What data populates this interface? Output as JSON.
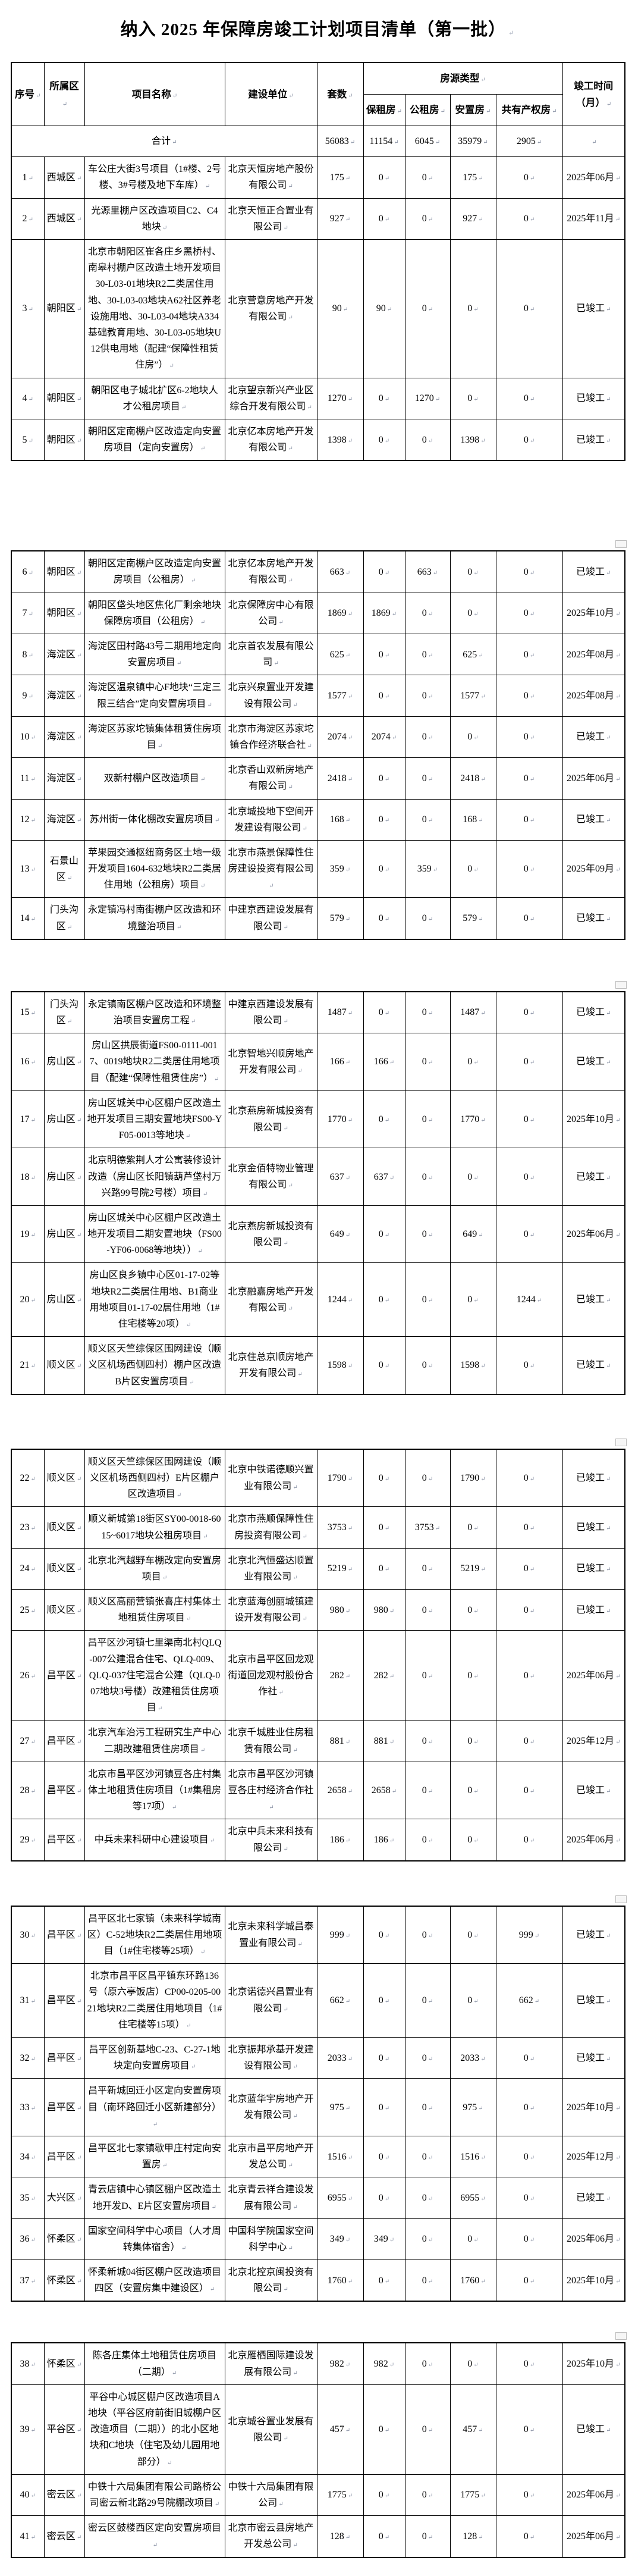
{
  "title": "纳入 2025 年保障房竣工计划项目清单（第一批）",
  "colors": {
    "background": "#ffffff",
    "text": "#000000",
    "table_border": "#000000",
    "paragraph_mark": "#8e96a8"
  },
  "table": {
    "headers": {
      "seq": "序号",
      "district": "所属区",
      "project": "项目名称",
      "builder": "建设单位",
      "units": "套数",
      "type_group": "房源类型",
      "bzf": "保租房",
      "gzf": "公租房",
      "azf": "安置房",
      "gycqf": "共有产权房",
      "completion": "竣工时间\n（月）"
    },
    "total": {
      "label": "合计",
      "units": "56083",
      "bzf": "11154",
      "gzf": "6045",
      "azf": "35979",
      "gycqf": "2905",
      "completion": ""
    },
    "sections": [
      {
        "rows": [
          {
            "seq": "1",
            "district": "西城区",
            "project": "车公庄大街3号项目（1#楼、2号楼、3#号楼及地下车库）",
            "builder": "北京天恒房地产股份有限公司",
            "units": "175",
            "bzf": "0",
            "gzf": "0",
            "azf": "175",
            "gycqf": "0",
            "completion": "2025年06月"
          },
          {
            "seq": "2",
            "district": "西城区",
            "project": "光源里棚户区改造项目C2、C4地块",
            "builder": "北京天恒正合置业有限公司",
            "units": "927",
            "bzf": "0",
            "gzf": "0",
            "azf": "927",
            "gycqf": "0",
            "completion": "2025年11月"
          },
          {
            "seq": "3",
            "district": "朝阳区",
            "project": "北京市朝阳区崔各庄乡黑桥村、南皋村棚户区改造土地开发项目30-L03-01地块R2二类居住用地、30-L03-03地块A62社区养老设施用地、30-L03-04地块A334基础教育用地、30-L03-05地块U12供电用地（配建“保障性租赁住房”）",
            "builder": "北京营意房地产开发有限公司",
            "units": "90",
            "bzf": "90",
            "gzf": "0",
            "azf": "0",
            "gycqf": "0",
            "completion": "已竣工"
          },
          {
            "seq": "4",
            "district": "朝阳区",
            "project": "朝阳区电子城北扩区6-2地块人才公租房项目",
            "builder": "北京望京新兴产业区综合开发有限公司",
            "units": "1270",
            "bzf": "0",
            "gzf": "1270",
            "azf": "0",
            "gycqf": "0",
            "completion": "已竣工"
          },
          {
            "seq": "5",
            "district": "朝阳区",
            "project": "朝阳区定南棚户区改造定向安置房项目（定向安置房）",
            "builder": "北京亿本房地产开发有限公司",
            "units": "1398",
            "bzf": "0",
            "gzf": "0",
            "azf": "1398",
            "gycqf": "0",
            "completion": "已竣工"
          }
        ]
      },
      {
        "rows": [
          {
            "seq": "6",
            "district": "朝阳区",
            "project": "朝阳区定南棚户区改造定向安置房项目（公租房）",
            "builder": "北京亿本房地产开发有限公司",
            "units": "663",
            "bzf": "0",
            "gzf": "663",
            "azf": "0",
            "gycqf": "0",
            "completion": "已竣工"
          },
          {
            "seq": "7",
            "district": "朝阳区",
            "project": "朝阳区垡头地区焦化厂剩余地块保障房项目（公租房）",
            "builder": "北京保障房中心有限公司",
            "units": "1869",
            "bzf": "1869",
            "gzf": "0",
            "azf": "0",
            "gycqf": "0",
            "completion": "2025年10月"
          },
          {
            "seq": "8",
            "district": "海淀区",
            "project": "海淀区田村路43号二期用地定向安置房项目",
            "builder": "北京首农发展有限公司",
            "units": "625",
            "bzf": "0",
            "gzf": "0",
            "azf": "625",
            "gycqf": "0",
            "completion": "2025年08月"
          },
          {
            "seq": "9",
            "district": "海淀区",
            "project": "海淀区温泉镇中心F地块“三定三限三结合”定向安置房项目",
            "builder": "北京兴泉置业开发建设有限公司",
            "units": "1577",
            "bzf": "0",
            "gzf": "0",
            "azf": "1577",
            "gycqf": "0",
            "completion": "2025年08月"
          },
          {
            "seq": "10",
            "district": "海淀区",
            "project": "海淀区苏家坨镇集体租赁住房项目",
            "builder": "北京市海淀区苏家坨镇合作经济联合社",
            "units": "2074",
            "bzf": "2074",
            "gzf": "0",
            "azf": "0",
            "gycqf": "0",
            "completion": "已竣工"
          },
          {
            "seq": "11",
            "district": "海淀区",
            "project": "双新村棚户区改造项目",
            "builder": "北京香山双新房地产有限公司",
            "units": "2418",
            "bzf": "0",
            "gzf": "0",
            "azf": "2418",
            "gycqf": "0",
            "completion": "2025年06月"
          },
          {
            "seq": "12",
            "district": "海淀区",
            "project": "苏州街一体化棚改安置房项目",
            "builder": "北京城投地下空间开发建设有限公司",
            "units": "168",
            "bzf": "0",
            "gzf": "0",
            "azf": "168",
            "gycqf": "0",
            "completion": "已竣工"
          },
          {
            "seq": "13",
            "district": "石景山区",
            "project": "苹果园交通枢纽商务区土地一级开发项目1604-632地块R2二类居住用地（公租房）项目",
            "builder": "北京市燕景保障性住房建设投资有限公司",
            "units": "359",
            "bzf": "0",
            "gzf": "359",
            "azf": "0",
            "gycqf": "0",
            "completion": "2025年09月"
          },
          {
            "seq": "14",
            "district": "门头沟区",
            "project": "永定镇冯村南街棚户区改造和环境整治项目",
            "builder": "中建京西建设发展有限公司",
            "units": "579",
            "bzf": "0",
            "gzf": "0",
            "azf": "579",
            "gycqf": "0",
            "completion": "已竣工"
          }
        ]
      },
      {
        "rows": [
          {
            "seq": "15",
            "district": "门头沟区",
            "project": "永定镇南区棚户区改造和环境整治项目安置房工程",
            "builder": "中建京西建设发展有限公司",
            "units": "1487",
            "bzf": "0",
            "gzf": "0",
            "azf": "1487",
            "gycqf": "0",
            "completion": "已竣工"
          },
          {
            "seq": "16",
            "district": "房山区",
            "project": "房山区拱辰街道FS00-0111-0017、0019地块R2二类居住用地项目（配建“保障性租赁住房”）",
            "builder": "北京智地兴顺房地产开发有限公司",
            "units": "166",
            "bzf": "166",
            "gzf": "0",
            "azf": "0",
            "gycqf": "0",
            "completion": "已竣工"
          },
          {
            "seq": "17",
            "district": "房山区",
            "project": "房山区城关中心区棚户区改造土地开发项目三期安置地块FS00-YF05-0013等地块",
            "builder": "北京燕房新城投资有限公司",
            "units": "1770",
            "bzf": "0",
            "gzf": "0",
            "azf": "1770",
            "gycqf": "0",
            "completion": "2025年10月"
          },
          {
            "seq": "18",
            "district": "房山区",
            "project": "北京明德紫荆人才公寓装修设计改造（房山区长阳镇葫芦垡村万兴路99号院2号楼）项目",
            "builder": "北京金佰特物业管理有限公司",
            "units": "637",
            "bzf": "637",
            "gzf": "0",
            "azf": "0",
            "gycqf": "0",
            "completion": "已竣工"
          },
          {
            "seq": "19",
            "district": "房山区",
            "project": "房山区城关中心区棚户区改造土地开发项目二期安置地块（FS00-YF06-0068等地块））",
            "builder": "北京燕房新城投资有限公司",
            "units": "649",
            "bzf": "0",
            "gzf": "0",
            "azf": "649",
            "gycqf": "0",
            "completion": "2025年06月"
          },
          {
            "seq": "20",
            "district": "房山区",
            "project": "房山区良乡镇中心区01-17-02等地块R2二类居住用地、B1商业用地项目01-17-02居住用地（1#住宅楼等20项）",
            "builder": "北京融嘉房地产开发有限公司",
            "units": "1244",
            "bzf": "0",
            "gzf": "0",
            "azf": "0",
            "gycqf": "1244",
            "completion": "已竣工"
          },
          {
            "seq": "21",
            "district": "顺义区",
            "project": "顺义区天竺综保区围网建设（顺义区机场西侧四村）棚户区改造B片区安置房项目",
            "builder": "北京住总京顺房地产开发有限公司",
            "units": "1598",
            "bzf": "0",
            "gzf": "0",
            "azf": "1598",
            "gycqf": "0",
            "completion": "已竣工"
          }
        ]
      },
      {
        "rows": [
          {
            "seq": "22",
            "district": "顺义区",
            "project": "顺义区天竺综保区围网建设（顺义区机场西侧四村）E片区棚户区改造项目",
            "builder": "北京中铁诺德顺兴置业有限公司",
            "units": "1790",
            "bzf": "0",
            "gzf": "0",
            "azf": "1790",
            "gycqf": "0",
            "completion": "已竣工"
          },
          {
            "seq": "23",
            "district": "顺义区",
            "project": "顺义新城第18街区SY00-0018-6015~6017地块公租房项目",
            "builder": "北京市燕顺保障性住房投资有限公司",
            "units": "3753",
            "bzf": "0",
            "gzf": "3753",
            "azf": "0",
            "gycqf": "0",
            "completion": "已竣工"
          },
          {
            "seq": "24",
            "district": "顺义区",
            "project": "北京北汽越野车棚改定向安置房项目",
            "builder": "北京北汽恒盛达顺置业有限公司",
            "units": "5219",
            "bzf": "0",
            "gzf": "0",
            "azf": "5219",
            "gycqf": "0",
            "completion": "已竣工"
          },
          {
            "seq": "25",
            "district": "顺义区",
            "project": "顺义区高丽营镇张喜庄村集体土地租赁住房项目",
            "builder": "北京蓝海创丽城镇建设开发有限公司",
            "units": "980",
            "bzf": "980",
            "gzf": "0",
            "azf": "0",
            "gycqf": "0",
            "completion": "已竣工"
          },
          {
            "seq": "26",
            "district": "昌平区",
            "project": "昌平区沙河镇七里渠南北村QLQ-007公建混合住宅、QLQ-009、QLQ-037住宅混合公建（QLQ-007地块3号楼）改建租赁住房项目",
            "builder": "北京市昌平区回龙观街道回龙观村股份合作社",
            "units": "282",
            "bzf": "282",
            "gzf": "0",
            "azf": "0",
            "gycqf": "0",
            "completion": "2025年06月"
          },
          {
            "seq": "27",
            "district": "昌平区",
            "project": "北京汽车治污工程研究生产中心二期改建租赁住房项目",
            "builder": "北京千城胜业住房租赁有限公司",
            "units": "881",
            "bzf": "881",
            "gzf": "0",
            "azf": "0",
            "gycqf": "0",
            "completion": "2025年12月"
          },
          {
            "seq": "28",
            "district": "昌平区",
            "project": "北京市昌平区沙河镇豆各庄村集体土地租赁住房项目（1#集租房等17项）",
            "builder": "北京市昌平区沙河镇豆各庄村经济合作社",
            "units": "2658",
            "bzf": "2658",
            "gzf": "0",
            "azf": "0",
            "gycqf": "0",
            "completion": "已竣工"
          },
          {
            "seq": "29",
            "district": "昌平区",
            "project": "中兵未来科研中心建设项目",
            "builder": "北京中兵未来科技有限公司",
            "units": "186",
            "bzf": "186",
            "gzf": "0",
            "azf": "0",
            "gycqf": "0",
            "completion": "2025年06月"
          }
        ]
      },
      {
        "rows": [
          {
            "seq": "30",
            "district": "昌平区",
            "project": "昌平区北七家镇（未来科学城南区）C-52地块R2二类居住用地项目（1#住宅楼等25项）",
            "builder": "北京未来科学城昌泰置业有限公司",
            "units": "999",
            "bzf": "0",
            "gzf": "0",
            "azf": "0",
            "gycqf": "999",
            "completion": "已竣工"
          },
          {
            "seq": "31",
            "district": "昌平区",
            "project": "北京市昌平区昌平镇东环路136号（原六亭饭店）CP00-0205-0021地块R2二类居住用地项目（1#住宅楼等15项）",
            "builder": "北京诺德兴昌置业有限公司",
            "units": "662",
            "bzf": "0",
            "gzf": "0",
            "azf": "0",
            "gycqf": "662",
            "completion": "已竣工"
          },
          {
            "seq": "32",
            "district": "昌平区",
            "project": "昌平区创新基地C-23、C-27-1地块定向安置房项目",
            "builder": "北京振邦承基开发建设有限公司",
            "units": "2033",
            "bzf": "0",
            "gzf": "0",
            "azf": "2033",
            "gycqf": "0",
            "completion": "已竣工"
          },
          {
            "seq": "33",
            "district": "昌平区",
            "project": "昌平新城回迁小区定向安置房项目（南环路回迁小区新建部分）",
            "builder": "北京蓝华宇房地产开发有限公司",
            "units": "975",
            "bzf": "0",
            "gzf": "0",
            "azf": "975",
            "gycqf": "0",
            "completion": "2025年10月"
          },
          {
            "seq": "34",
            "district": "昌平区",
            "project": "昌平区北七家镇歇甲庄村定向安置房",
            "builder": "北京市昌平房地产开发总公司",
            "units": "1516",
            "bzf": "0",
            "gzf": "0",
            "azf": "1516",
            "gycqf": "0",
            "completion": "2025年12月"
          },
          {
            "seq": "35",
            "district": "大兴区",
            "project": "青云店镇中心镇区棚户区改造土地开发D、E片区安置房项目",
            "builder": "北京青云祥合建设发展有限公司",
            "units": "6955",
            "bzf": "0",
            "gzf": "0",
            "azf": "6955",
            "gycqf": "0",
            "completion": "已竣工"
          },
          {
            "seq": "36",
            "district": "怀柔区",
            "project": "国家空间科学中心项目（人才周转集体宿舍）",
            "builder": "中国科学院国家空间科学中心",
            "units": "349",
            "bzf": "349",
            "gzf": "0",
            "azf": "0",
            "gycqf": "0",
            "completion": "2025年06月"
          },
          {
            "seq": "37",
            "district": "怀柔区",
            "project": "怀柔新城04街区棚户区改造项目四区（安置房集中建设区）",
            "builder": "北京北控京闽投资有限公司",
            "units": "1760",
            "bzf": "0",
            "gzf": "0",
            "azf": "1760",
            "gycqf": "0",
            "completion": "2025年10月"
          }
        ]
      },
      {
        "rows": [
          {
            "seq": "38",
            "district": "怀柔区",
            "project": "陈各庄集体土地租赁住房项目（二期）",
            "builder": "北京雁栖国际建设发展有限公司",
            "units": "982",
            "bzf": "982",
            "gzf": "0",
            "azf": "0",
            "gycqf": "0",
            "completion": "2025年10月"
          },
          {
            "seq": "39",
            "district": "平谷区",
            "project": "平谷中心城区棚户区改造项目A地块（平谷区府前街旧城棚户区改造项目（二期））的北小区地块和C地块（住宅及幼儿园用地部分）",
            "builder": "北京城谷置业发展有限公司",
            "units": "457",
            "bzf": "0",
            "gzf": "0",
            "azf": "457",
            "gycqf": "0",
            "completion": "已竣工"
          },
          {
            "seq": "40",
            "district": "密云区",
            "project": "中铁十六局集团有限公司路桥公司密云新北路29号院棚改项目",
            "builder": "中铁十六局集团有限公司",
            "units": "1775",
            "bzf": "0",
            "gzf": "0",
            "azf": "1775",
            "gycqf": "0",
            "completion": "2025年06月"
          },
          {
            "seq": "41",
            "district": "密云区",
            "project": "密云区鼓楼西区定向安置房项目",
            "builder": "北京市密云县房地产开发总公司",
            "units": "128",
            "bzf": "0",
            "gzf": "0",
            "azf": "128",
            "gycqf": "0",
            "completion": "2025年06月"
          }
        ]
      }
    ]
  }
}
